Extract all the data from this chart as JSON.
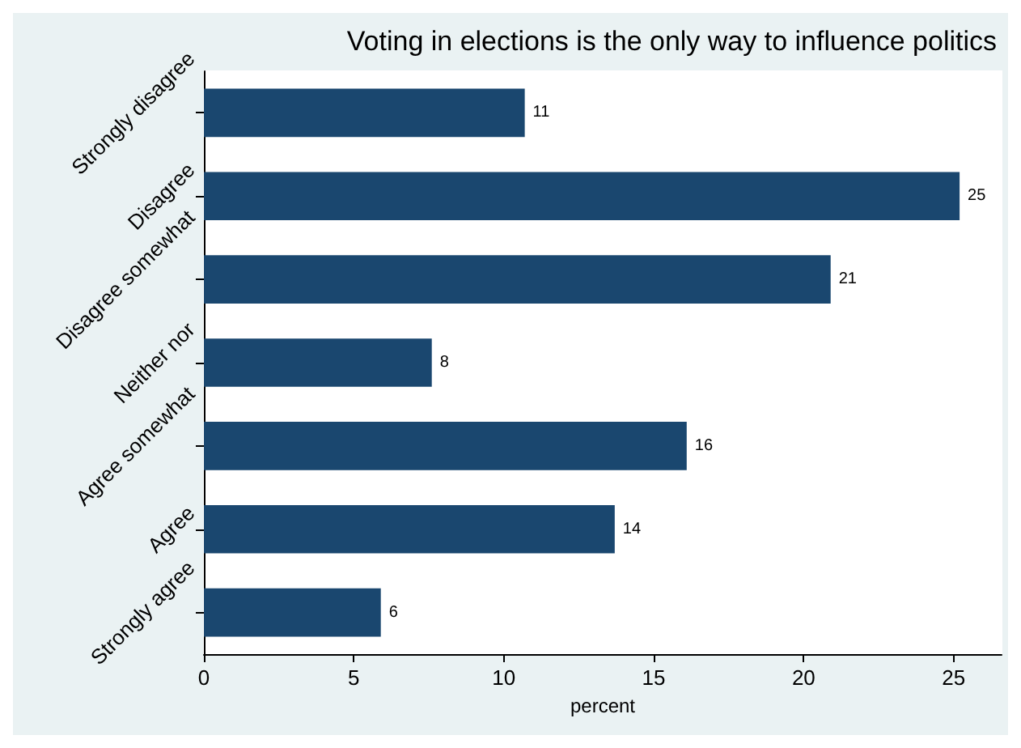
{
  "chart_data": {
    "type": "bar",
    "orientation": "horizontal",
    "title": "Voting in elections is the only way to influence politics",
    "xlabel": "percent",
    "categories": [
      "Strongly disagree",
      "Disagree",
      "Disagree somewhat",
      "Neither nor",
      "Agree somewhat",
      "Agree",
      "Strongly agree"
    ],
    "values": [
      10.7,
      25.2,
      20.9,
      7.6,
      16.1,
      13.7,
      5.9
    ],
    "value_labels": [
      "11",
      "25",
      "21",
      "8",
      "16",
      "14",
      "6"
    ],
    "color": "#1a476f",
    "xlim": [
      0,
      26.6
    ],
    "xticks": [
      0,
      5,
      10,
      15,
      20,
      25
    ],
    "grid": false
  }
}
